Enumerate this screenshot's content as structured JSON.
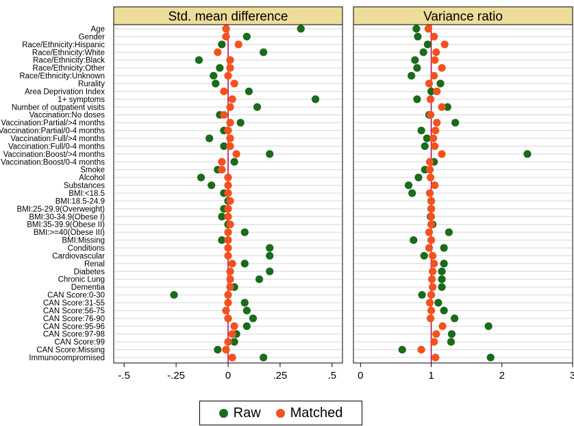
{
  "legend": {
    "raw_label": "Raw",
    "matched_label": "Matched"
  },
  "chart_data": {
    "type": "scatter",
    "layout": "dot-plot, two panels side by side sharing covariate rows",
    "colors": {
      "raw": "#1a6b1a",
      "matched": "#f4511e",
      "reference_line": "#b0005a",
      "header_fill": "#eedc9a",
      "grid": "#d4d4d4"
    },
    "grid": true,
    "legend_position": "bottom",
    "categories": [
      "Age",
      "Gender",
      "Race/Ethnicity:Hispanic",
      "Race/Ethnicity:White",
      "Race/Ethnicity:Black",
      "Race/Ethnicity:Other",
      "Race/Ethnicity:Unknown",
      "Rurality",
      "Area Deprivation Index",
      "1+ symptoms",
      "Number of outpatient visits",
      "Vaccination:No doses",
      "Vaccination:Partial/>4 months",
      "Vaccination:Partial/0-4 months",
      "Vaccination:Full/>4 months",
      "Vaccination:Full/0-4 months",
      "Vaccination:Boost/>4 months",
      "Vaccination:Boost/0-4 months",
      "Smoke",
      "Alcohol",
      "Substances",
      "BMI:<18.5",
      "BMI:18.5-24.9",
      "BMI:25-29.9(Overweight)",
      "BMI:30-34.9(Obese I)",
      "BMI:35-39.9(Obese II)",
      "BMI:>=40(Obese III)",
      "BMI:Missing",
      "Conditions",
      "Cardiovascular",
      "Renal",
      "Diabetes",
      "Chronic Lung",
      "Dementia",
      "CAN Score:0-30",
      "CAN Score:31-55",
      "CAN Score:56-75",
      "CAN Score:76-90",
      "CAN Score:95-96",
      "CAN Score:97-98",
      "CAN Score:99",
      "CAN Score:Missing",
      "Immunocompromised"
    ],
    "panels": [
      {
        "title": "Std. mean difference",
        "xlim": [
          -0.55,
          0.55
        ],
        "reference_line": 0,
        "ticks": [
          -0.5,
          -0.25,
          0,
          0.25,
          0.5
        ],
        "tick_labels": [
          "-.5",
          "-.25",
          "0",
          ".25",
          ".5"
        ],
        "series": [
          {
            "name": "Raw",
            "values": [
              0.35,
              0.09,
              -0.03,
              0.17,
              -0.14,
              -0.04,
              -0.07,
              -0.06,
              0.1,
              0.42,
              0.14,
              -0.04,
              0.06,
              -0.02,
              -0.09,
              -0.02,
              0.2,
              0.03,
              -0.05,
              -0.13,
              -0.08,
              -0.02,
              0.0,
              -0.02,
              -0.03,
              0.0,
              0.08,
              -0.03,
              0.2,
              0.2,
              0.08,
              0.2,
              0.15,
              0.03,
              -0.26,
              0.08,
              0.09,
              0.12,
              0.09,
              0.04,
              0.03,
              -0.05,
              0.17
            ]
          },
          {
            "name": "Matched",
            "values": [
              -0.01,
              -0.01,
              0.05,
              -0.05,
              0.01,
              0.01,
              0.0,
              0.03,
              -0.02,
              0.02,
              0.01,
              -0.02,
              0.01,
              0.0,
              0.01,
              0.01,
              0.04,
              -0.03,
              -0.03,
              0.0,
              0.0,
              0.0,
              0.01,
              0.0,
              0.0,
              0.01,
              0.0,
              0.0,
              0.0,
              0.0,
              0.02,
              0.01,
              0.01,
              0.01,
              0.0,
              0.0,
              -0.01,
              0.0,
              0.03,
              0.02,
              0.0,
              -0.01,
              0.02
            ]
          }
        ]
      },
      {
        "title": "Variance ratio",
        "xlim": [
          -0.1,
          3.0
        ],
        "reference_line": 1,
        "ticks": [
          0,
          1,
          2,
          3
        ],
        "tick_labels": [
          "0",
          "1",
          "2",
          "3"
        ],
        "series": [
          {
            "name": "Raw",
            "values": [
              0.79,
              0.81,
              0.95,
              0.89,
              0.77,
              0.8,
              0.72,
              1.13,
              1.0,
              0.8,
              1.23,
              0.97,
              1.34,
              0.86,
              0.94,
              0.91,
              2.36,
              1.04,
              0.91,
              0.82,
              0.68,
              0.73,
              1.0,
              1.0,
              0.99,
              1.02,
              1.25,
              0.75,
              1.18,
              0.9,
              1.18,
              1.15,
              1.15,
              1.15,
              0.87,
              1.1,
              1.18,
              1.33,
              1.81,
              1.29,
              1.28,
              0.59,
              1.84
            ]
          },
          {
            "name": "Matched",
            "values": [
              0.96,
              1.04,
              1.19,
              1.07,
              1.05,
              1.15,
              1.04,
              0.97,
              1.08,
              0.99,
              1.15,
              0.99,
              1.08,
              1.06,
              1.03,
              1.05,
              1.15,
              0.98,
              0.98,
              0.99,
              1.05,
              0.98,
              1.0,
              1.0,
              1.0,
              1.0,
              0.97,
              1.0,
              0.97,
              1.02,
              1.04,
              1.02,
              1.01,
              1.02,
              1.0,
              0.98,
              1.0,
              0.99,
              1.16,
              1.07,
              1.04,
              0.86,
              1.06
            ]
          }
        ]
      }
    ]
  }
}
